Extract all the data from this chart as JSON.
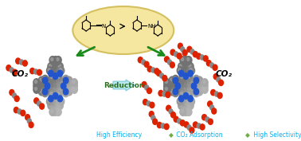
{
  "bg_color": "#ffffff",
  "ellipse_color": "#f5e6a0",
  "ellipse_edge": "#d4c060",
  "figsize": [
    3.78,
    1.77
  ],
  "dpi": 100,
  "reduction_text": "Reduction",
  "bottom_parts": [
    {
      "text": "High Efficiency ",
      "color": "#00b0f0",
      "style": "normal"
    },
    {
      "text": "◆",
      "color": "#70ad47",
      "style": "normal"
    },
    {
      "text": " CO₂ Adsorption",
      "color": "#00b0f0",
      "style": "normal"
    },
    {
      "text": "◆",
      "color": "#70ad47",
      "style": "normal"
    },
    {
      "text": " High Selectivity",
      "color": "#00b0f0",
      "style": "normal"
    }
  ],
  "cof_gray": "#909090",
  "cof_gray_light": "#b8b8b8",
  "cof_blue": "#2255cc",
  "co2_red": "#dd2200",
  "co2_gray": "#888888"
}
